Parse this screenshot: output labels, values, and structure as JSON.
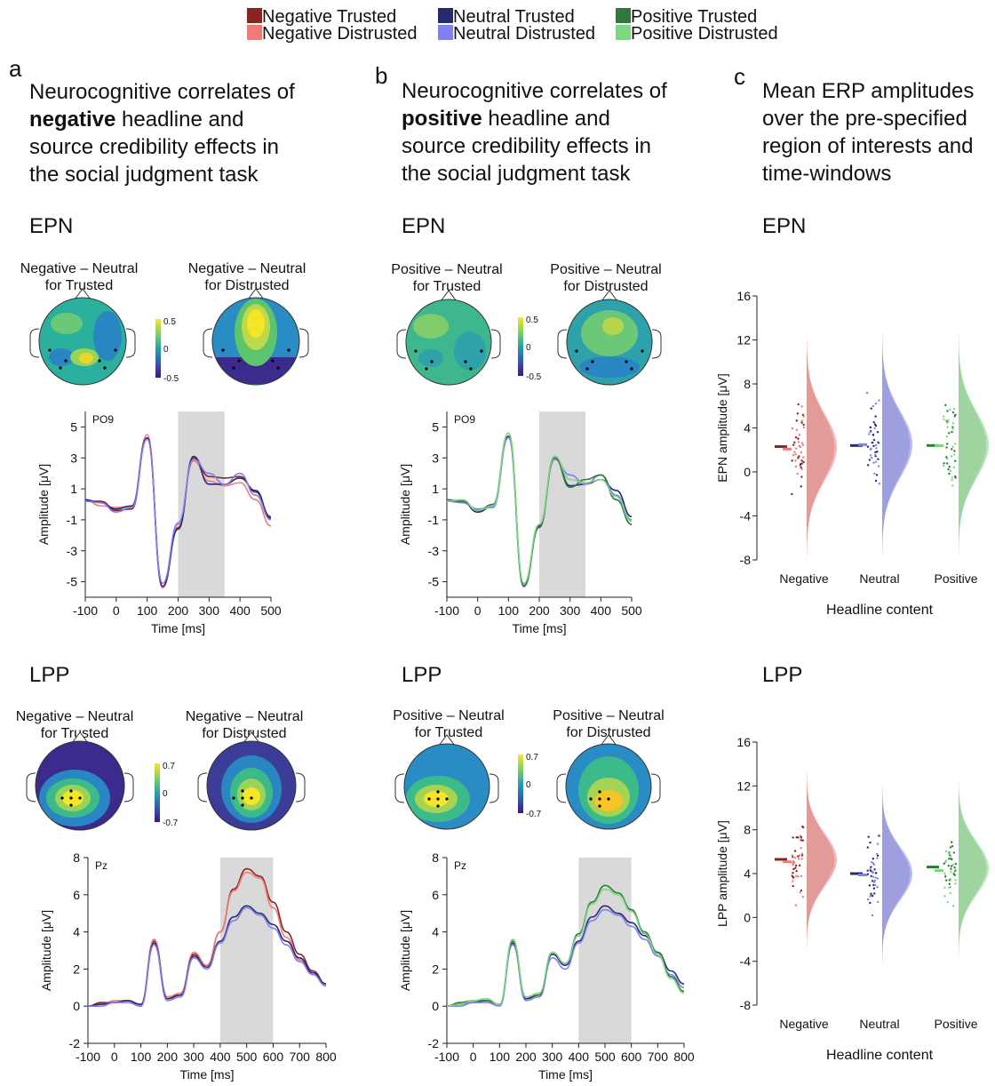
{
  "legend": {
    "items": [
      {
        "label": "Negative Trusted",
        "color": "#8b2323"
      },
      {
        "label": "Neutral Trusted",
        "color": "#262b70"
      },
      {
        "label": "Positive Trusted",
        "color": "#2f7a3a"
      },
      {
        "label": "Negative Distrusted",
        "color": "#f07a76"
      },
      {
        "label": "Neutral Distrusted",
        "color": "#8080f0"
      },
      {
        "label": "Positive Distrusted",
        "color": "#7fd67f"
      }
    ]
  },
  "panels": {
    "a": {
      "letter": "a",
      "lines": [
        [
          "Neurocognitive correlates of",
          ""
        ],
        [
          "",
          "negative",
          " headline and"
        ],
        [
          "source credibility effects in",
          ""
        ],
        [
          "the social judgment task",
          ""
        ]
      ]
    },
    "b": {
      "letter": "b",
      "lines": [
        [
          "Neurocognitive correlates of",
          ""
        ],
        [
          "",
          "positive",
          " headline and"
        ],
        [
          "source credibility effects in",
          ""
        ],
        [
          "the social judgment task",
          ""
        ]
      ]
    },
    "c": {
      "letter": "c",
      "lines": [
        [
          "Mean ERP amplitudes"
        ],
        [
          "over the pre-specified"
        ],
        [
          "region of interests and"
        ],
        [
          "time-windows"
        ]
      ]
    }
  },
  "sections": {
    "epn": "EPN",
    "lpp": "LPP"
  },
  "topo_titles": {
    "a_epn": [
      [
        "Negative – Neutral",
        "for Trusted"
      ],
      [
        "Negative – Neutral",
        "for Distrusted"
      ]
    ],
    "b_epn": [
      [
        "Positive – Neutral",
        "for Trusted"
      ],
      [
        "Positive – Neutral",
        "for Distrusted"
      ]
    ],
    "a_lpp": [
      [
        "Negative – Neutral",
        "for Trusted"
      ],
      [
        "Negative – Neutral",
        "for Distrusted"
      ]
    ],
    "b_lpp": [
      [
        "Positive – Neutral",
        "for Trusted"
      ],
      [
        "Positive – Neutral",
        "for Distrusted"
      ]
    ]
  },
  "colorbars": {
    "epn": [
      "0.5",
      "0",
      "-0.5"
    ],
    "lpp": [
      "0.7",
      "0",
      "-0.7"
    ]
  },
  "chart_data": [
    {
      "type": "line",
      "panel": "a",
      "component": "EPN",
      "channel": "PO9",
      "xlabel": "Time [ms]",
      "ylabel": "Amplitude [μV]",
      "xlim": [
        -100,
        500
      ],
      "ylim": [
        -6,
        6
      ],
      "xticks": [
        -100,
        0,
        100,
        200,
        300,
        400,
        500
      ],
      "yticks": [
        5,
        3,
        1,
        -1,
        -3,
        -5
      ],
      "shaded_window": [
        200,
        350
      ],
      "x": [
        -100,
        -50,
        0,
        50,
        100,
        150,
        200,
        250,
        300,
        350,
        400,
        450,
        500
      ],
      "series": [
        {
          "name": "Negative Trusted",
          "values": [
            0.2,
            0.2,
            -0.4,
            -0.3,
            4.3,
            -5.3,
            -1.5,
            3.0,
            1.8,
            1.7,
            1.8,
            0.8,
            -0.8
          ]
        },
        {
          "name": "Negative Distrusted",
          "values": [
            0.3,
            -0.1,
            -0.2,
            -0.1,
            4.5,
            -5.4,
            -1.3,
            2.8,
            1.5,
            1.2,
            1.4,
            0.3,
            -1.4
          ]
        },
        {
          "name": "Neutral Trusted",
          "values": [
            0.3,
            0.1,
            -0.3,
            -0.1,
            4.3,
            -5.3,
            -1.6,
            3.1,
            1.3,
            1.3,
            1.7,
            0.9,
            -0.9
          ]
        },
        {
          "name": "Neutral Distrusted",
          "values": [
            0.2,
            0.1,
            -0.5,
            -0.2,
            4.2,
            -5.1,
            -1.2,
            2.9,
            2.0,
            1.3,
            2.0,
            0.6,
            -1.0
          ]
        }
      ]
    },
    {
      "type": "line",
      "panel": "b",
      "component": "EPN",
      "channel": "PO9",
      "xlabel": "Time [ms]",
      "ylabel": "Amplitude [μV]",
      "xlim": [
        -100,
        500
      ],
      "ylim": [
        -6,
        6
      ],
      "xticks": [
        -100,
        0,
        100,
        200,
        300,
        400,
        500
      ],
      "yticks": [
        5,
        3,
        1,
        -1,
        -3,
        -5
      ],
      "shaded_window": [
        200,
        350
      ],
      "x": [
        -100,
        -50,
        0,
        50,
        100,
        150,
        200,
        250,
        300,
        350,
        400,
        450,
        500
      ],
      "series": [
        {
          "name": "Neutral Trusted",
          "values": [
            0.2,
            0.2,
            -0.5,
            -0.1,
            4.4,
            -5.3,
            -1.4,
            3.1,
            1.2,
            1.3,
            1.6,
            0.9,
            -0.8
          ]
        },
        {
          "name": "Neutral Distrusted",
          "values": [
            0.2,
            0.1,
            -0.3,
            -0.2,
            4.3,
            -5.2,
            -1.3,
            2.9,
            1.9,
            1.3,
            1.9,
            0.6,
            -1.0
          ]
        },
        {
          "name": "Positive Trusted",
          "values": [
            0.3,
            0.2,
            -0.4,
            0.0,
            4.6,
            -5.3,
            -1.5,
            3.0,
            1.1,
            1.6,
            1.9,
            0.3,
            -1.3
          ]
        },
        {
          "name": "Positive Distrusted",
          "values": [
            0.2,
            0.3,
            -0.4,
            -0.1,
            4.6,
            -5.1,
            -1.3,
            3.1,
            1.6,
            1.4,
            1.6,
            0.5,
            -1.1
          ]
        }
      ]
    },
    {
      "type": "line",
      "panel": "a",
      "component": "LPP",
      "channel": "Pz",
      "xlabel": "Time [ms]",
      "ylabel": "Amplitude [μV]",
      "xlim": [
        -100,
        800
      ],
      "ylim": [
        -2,
        8
      ],
      "xticks": [
        -100,
        0,
        100,
        200,
        300,
        400,
        500,
        600,
        700,
        800
      ],
      "yticks": [
        8,
        6,
        4,
        2,
        0,
        -2
      ],
      "shaded_window": [
        400,
        600
      ],
      "x": [
        -100,
        -50,
        0,
        50,
        100,
        150,
        200,
        250,
        300,
        350,
        400,
        450,
        500,
        550,
        600,
        650,
        700,
        750,
        800
      ],
      "series": [
        {
          "name": "Negative Trusted",
          "values": [
            0.0,
            0.2,
            0.2,
            0.3,
            0.0,
            3.5,
            0.5,
            0.6,
            2.8,
            2.2,
            4.0,
            6.3,
            7.4,
            7.0,
            5.6,
            4.0,
            2.8,
            1.9,
            1.2
          ]
        },
        {
          "name": "Negative Distrusted",
          "values": [
            0.0,
            0.1,
            0.3,
            0.3,
            0.1,
            3.6,
            0.5,
            0.7,
            2.9,
            2.2,
            4.0,
            6.2,
            7.2,
            6.9,
            5.3,
            3.7,
            2.5,
            1.7,
            1.1
          ]
        },
        {
          "name": "Neutral Trusted",
          "values": [
            0.0,
            0.1,
            0.2,
            0.3,
            0.1,
            3.4,
            0.4,
            0.6,
            2.7,
            2.1,
            3.5,
            4.8,
            5.4,
            5.0,
            4.4,
            3.5,
            2.6,
            1.8,
            1.2
          ]
        },
        {
          "name": "Neutral Distrusted",
          "values": [
            0.0,
            0.0,
            0.2,
            0.2,
            0.0,
            3.3,
            0.3,
            0.5,
            2.6,
            2.0,
            3.4,
            4.6,
            5.3,
            4.9,
            4.2,
            3.3,
            2.4,
            1.7,
            1.1
          ]
        }
      ]
    },
    {
      "type": "line",
      "panel": "b",
      "component": "LPP",
      "channel": "Pz",
      "xlabel": "Time [ms]",
      "ylabel": "Amplitude [μV]",
      "xlim": [
        -100,
        800
      ],
      "ylim": [
        -2,
        8
      ],
      "xticks": [
        -100,
        0,
        100,
        200,
        300,
        400,
        500,
        600,
        700,
        800
      ],
      "yticks": [
        8,
        6,
        4,
        2,
        0,
        -2
      ],
      "shaded_window": [
        400,
        600
      ],
      "x": [
        -100,
        -50,
        0,
        50,
        100,
        150,
        200,
        250,
        300,
        350,
        400,
        450,
        500,
        550,
        600,
        650,
        700,
        750,
        800
      ],
      "series": [
        {
          "name": "Neutral Trusted",
          "values": [
            0.0,
            0.1,
            0.2,
            0.3,
            0.1,
            3.4,
            0.4,
            0.6,
            2.8,
            2.2,
            3.5,
            4.8,
            5.4,
            5.0,
            4.5,
            3.8,
            2.9,
            1.9,
            1.2
          ]
        },
        {
          "name": "Neutral Distrusted",
          "values": [
            0.0,
            0.0,
            0.2,
            0.2,
            0.0,
            3.3,
            0.3,
            0.5,
            2.6,
            2.0,
            3.4,
            4.6,
            5.2,
            4.9,
            4.3,
            3.6,
            2.7,
            1.7,
            1.0
          ]
        },
        {
          "name": "Positive Trusted",
          "values": [
            0.0,
            0.2,
            0.3,
            0.3,
            0.1,
            3.5,
            0.5,
            0.6,
            2.9,
            2.3,
            3.9,
            5.6,
            6.5,
            6.1,
            5.2,
            4.0,
            2.9,
            1.6,
            0.8
          ]
        },
        {
          "name": "Positive Distrusted",
          "values": [
            0.0,
            0.1,
            0.3,
            0.4,
            0.1,
            3.6,
            0.5,
            0.7,
            2.9,
            2.3,
            3.8,
            5.5,
            6.3,
            6.0,
            5.1,
            3.9,
            2.8,
            1.5,
            0.7
          ]
        }
      ]
    },
    {
      "type": "raincloud",
      "panel": "c",
      "component": "EPN",
      "xlabel": "Headline content",
      "ylabel": "EPN amplitude [μV]",
      "ylim": [
        -8,
        16
      ],
      "yticks": [
        16,
        12,
        8,
        4,
        0,
        -4,
        -8
      ],
      "categories": [
        "Negative",
        "Neutral",
        "Positive"
      ],
      "means": {
        "Negative": {
          "Trusted": 2.3,
          "Distrusted": 2.2
        },
        "Neutral": {
          "Trusted": 2.4,
          "Distrusted": 2.6
        },
        "Positive": {
          "Trusted": 2.4,
          "Distrusted": 2.5
        }
      }
    },
    {
      "type": "raincloud",
      "panel": "c",
      "component": "LPP",
      "xlabel": "Headline content",
      "ylabel": "LPP amplitude [μV]",
      "ylim": [
        -8,
        16
      ],
      "yticks": [
        16,
        12,
        8,
        4,
        0,
        -4,
        -8
      ],
      "categories": [
        "Negative",
        "Neutral",
        "Positive"
      ],
      "means": {
        "Negative": {
          "Trusted": 5.3,
          "Distrusted": 5.2
        },
        "Neutral": {
          "Trusted": 4.0,
          "Distrusted": 4.0
        },
        "Positive": {
          "Trusted": 4.6,
          "Distrusted": 4.4
        }
      }
    }
  ]
}
